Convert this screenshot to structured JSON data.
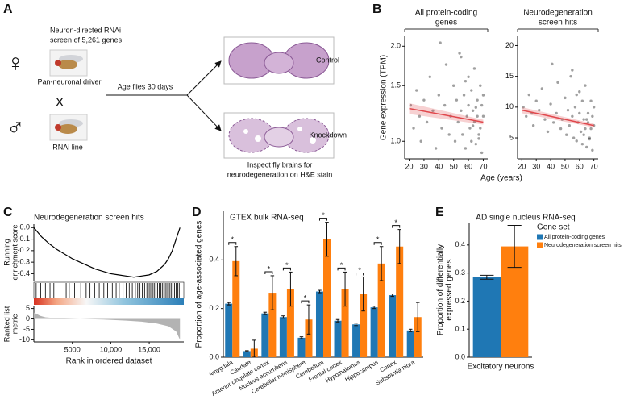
{
  "panel_labels": [
    "A",
    "B",
    "C",
    "D",
    "E"
  ],
  "diagram": {
    "screen_text": [
      "Neuron-directed RNAi",
      "screen of 5,261 genes"
    ],
    "female_symbol": "♀",
    "male_symbol": "♂",
    "driver_label": "Pan-neuronal driver",
    "cross_symbol": "X",
    "rnai_label": "RNAi line",
    "arrow_label": "Age flies 30 days",
    "outcomes": [
      "Control",
      "Knockdown"
    ],
    "inspect_text": [
      "Inspect fly brains for",
      "neurodegeneration on H&E stain"
    ]
  },
  "chart_data": [
    {
      "type": "scatter",
      "title": [
        "All protein-coding",
        "genes"
      ],
      "y_label": "Gene expression (TPM)",
      "x_label": "Age (years)",
      "log_y": true,
      "x": [
        21,
        23,
        25,
        27,
        28,
        30,
        32,
        34,
        36,
        38,
        40,
        42,
        44,
        45,
        47,
        48,
        50,
        51,
        52,
        53,
        54,
        55,
        56,
        57,
        58,
        59,
        60,
        60,
        61,
        62,
        62,
        63,
        64,
        64,
        65,
        66,
        66,
        67,
        68,
        68,
        69,
        69,
        70,
        70,
        41,
        55,
        58,
        63,
        65,
        67
      ],
      "values": [
        1.3,
        1.1,
        1.45,
        1.2,
        1.0,
        1.35,
        1.15,
        1.6,
        1.25,
        0.95,
        1.4,
        1.1,
        1.3,
        1.75,
        1.05,
        1.2,
        1.5,
        1.0,
        1.35,
        1.15,
        1.9,
        1.25,
        1.05,
        1.4,
        0.95,
        1.2,
        1.3,
        1.6,
        1.1,
        1.0,
        1.45,
        1.25,
        1.15,
        1.7,
        0.98,
        1.35,
        1.2,
        1.05,
        1.5,
        1.1,
        1.3,
        0.92,
        1.2,
        1.4,
        2.05,
        1.85,
        1.55,
        1.12,
        1.28,
        1.02
      ],
      "point_color": "#111111",
      "fit": {
        "x": [
          20,
          70
        ],
        "values": [
          1.27,
          1.15
        ],
        "lower": [
          1.22,
          1.13
        ],
        "upper": [
          1.32,
          1.17
        ],
        "color": "#e0474c"
      },
      "xlim": [
        17,
        73
      ],
      "ylim": [
        0.88,
        2.15
      ],
      "xticks": [
        20,
        30,
        40,
        50,
        60,
        70
      ],
      "yticks": [
        {
          "value": 1,
          "label": "1.0"
        },
        {
          "value": 1.5,
          "label": "1.5"
        },
        {
          "value": 2,
          "label": "2.0"
        }
      ]
    },
    {
      "type": "scatter",
      "title": [
        "Neurodegeneration",
        "screen hits"
      ],
      "log_y": false,
      "x": [
        21,
        23,
        25,
        27,
        28,
        30,
        32,
        34,
        36,
        38,
        40,
        42,
        44,
        45,
        47,
        48,
        50,
        51,
        52,
        53,
        54,
        55,
        56,
        57,
        58,
        59,
        60,
        60,
        61,
        62,
        62,
        63,
        64,
        64,
        65,
        66,
        66,
        67,
        68,
        68,
        69,
        69,
        70,
        70,
        41,
        55,
        58,
        63,
        65,
        67
      ],
      "values": [
        10,
        8.5,
        12,
        9,
        7,
        11,
        9.5,
        13,
        8,
        6,
        10.5,
        7.5,
        9,
        14,
        6.5,
        8,
        11.5,
        5.5,
        9.5,
        7,
        15,
        8.5,
        5,
        10,
        4.5,
        7.5,
        9,
        12.5,
        6,
        4,
        11,
        8,
        6.5,
        13.5,
        3.5,
        9,
        7.5,
        5,
        11,
        6.5,
        8.5,
        3,
        7,
        10,
        17,
        16,
        12,
        5.5,
        8,
        4.8
      ],
      "point_color": "#111111",
      "fit": {
        "x": [
          20,
          70
        ],
        "values": [
          9.5,
          7.0
        ],
        "lower": [
          9.0,
          6.7
        ],
        "upper": [
          10.0,
          7.3
        ],
        "color": "#e0474c"
      },
      "xlim": [
        17,
        73
      ],
      "ylim": [
        1.6,
        21.5
      ],
      "xticks": [
        20,
        30,
        40,
        50,
        60,
        70
      ],
      "yticks": [
        5,
        10,
        15,
        20
      ]
    },
    {
      "type": "gsea",
      "title": "Neurodegeneration screen hits",
      "y_label": [
        "Running",
        "enrichment score"
      ],
      "x": [
        0,
        1000,
        2000,
        3000,
        4000,
        5000,
        6000,
        7000,
        8000,
        9000,
        10000,
        11000,
        12000,
        13000,
        14000,
        15000,
        16000,
        17000,
        17500,
        18000,
        18500,
        19000
      ],
      "values": [
        0,
        -0.08,
        -0.14,
        -0.19,
        -0.23,
        -0.27,
        -0.3,
        -0.33,
        -0.36,
        -0.38,
        -0.4,
        -0.41,
        -0.42,
        -0.43,
        -0.42,
        -0.41,
        -0.38,
        -0.32,
        -0.27,
        -0.2,
        -0.1,
        0.0
      ],
      "color": "#000000",
      "hits": [
        300,
        900,
        1500,
        2100,
        2600,
        3400,
        4200,
        4600,
        5300,
        6100,
        6800,
        7300,
        7900,
        8500,
        9100,
        9600,
        10200,
        10700,
        11100,
        11600,
        12000,
        12400,
        12800,
        13200,
        13500,
        13800,
        14100,
        14400,
        14700,
        15000,
        15200,
        15500,
        15700,
        15900,
        16100,
        16300,
        16500,
        16700,
        16900,
        17100,
        17300,
        17500,
        17700,
        17900,
        18100,
        18300,
        18500,
        18700,
        18900
      ],
      "metric": {
        "y_label": [
          "Ranked list",
          "metric"
        ],
        "x": [
          0,
          300,
          800,
          1500,
          3000,
          6000,
          9000,
          12000,
          14000,
          16000,
          17500,
          18500,
          19000
        ],
        "values": [
          3,
          2.5,
          1.5,
          0.8,
          0.3,
          0,
          -0.3,
          -0.8,
          -1.3,
          -2.2,
          -3.5,
          -6,
          -10
        ],
        "ylim": [
          -11,
          6
        ],
        "yticks": [
          5,
          0,
          -5,
          -10
        ],
        "color": "#b3b3b3"
      },
      "xlim": [
        0,
        19500
      ],
      "ylim": [
        -0.46,
        0.03
      ],
      "yticks": [
        {
          "value": 0,
          "label": "0.0"
        },
        -0.1,
        -0.2,
        -0.3,
        -0.4
      ],
      "xticks": [
        5000,
        {
          "value": 10000,
          "label": "10,000"
        },
        {
          "value": 15000,
          "label": "15,000"
        }
      ],
      "x_label": "Rank in ordered dataset"
    },
    {
      "type": "bar",
      "title": "GTEX bulk RNA-seq",
      "y_label": "Proportion of age-associated genes",
      "categories": [
        "Amygdala",
        "Caudate",
        "Anterior cingulate cortex",
        "Nucleus accumbens",
        "Cerebellar hemisphere",
        "Cerebellum",
        "Frontal cortex",
        "Hypothalamus",
        "Hippocampus",
        "Cortex",
        "Substantia nigra"
      ],
      "series": [
        {
          "color": "#1f77b4",
          "values": [
            0.22,
            0.025,
            0.18,
            0.165,
            0.08,
            0.27,
            0.15,
            0.135,
            0.205,
            0.255,
            0.11
          ],
          "errors": [
            0.005,
            0.002,
            0.005,
            0.005,
            0.004,
            0.005,
            0.005,
            0.005,
            0.005,
            0.005,
            0.005
          ]
        },
        {
          "color": "#ff7f0e",
          "values": [
            0.395,
            0.035,
            0.265,
            0.28,
            0.155,
            0.485,
            0.28,
            0.26,
            0.385,
            0.455,
            0.165
          ],
          "errors": [
            0.06,
            0.035,
            0.07,
            0.07,
            0.06,
            0.07,
            0.07,
            0.07,
            0.07,
            0.07,
            0.06
          ]
        }
      ],
      "significance": [
        "*",
        null,
        "*",
        "*",
        "*",
        "*",
        "*",
        "*",
        "*",
        "*",
        null
      ],
      "ylim": [
        0,
        0.6
      ],
      "yticks": [
        {
          "value": 0,
          "label": "0.0"
        },
        0.2,
        0.4
      ]
    },
    {
      "type": "bar",
      "title": "AD single nucleus RNA-seq",
      "y_label": [
        "Proportion of differentially",
        "expressed genes"
      ],
      "categories": [
        "Excitatory neurons"
      ],
      "series": [
        {
          "name": "All protein-coding genes",
          "color": "#1f77b4",
          "values": [
            0.285
          ],
          "errors": [
            0.007
          ]
        },
        {
          "name": "Neurodegeneration screen hits",
          "color": "#ff7f0e",
          "values": [
            0.395
          ],
          "errors": [
            0.075
          ]
        }
      ],
      "legend_title": "Gene set",
      "legend": "right",
      "ylim": [
        0,
        0.48
      ],
      "yticks": [
        {
          "value": 0,
          "label": "0.0"
        },
        0.1,
        0.2,
        0.3,
        0.4
      ]
    }
  ]
}
